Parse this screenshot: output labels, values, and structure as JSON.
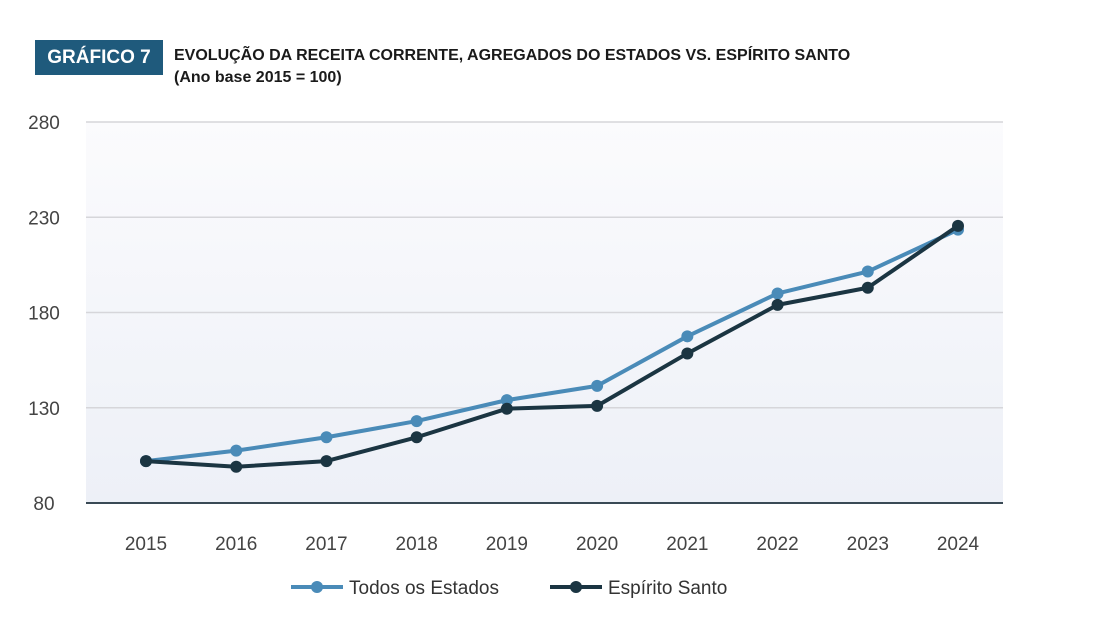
{
  "header": {
    "badge": "GRÁFICO 7",
    "title": "EVOLUÇÃO DA RECEITA CORRENTE, AGREGADOS DO ESTADOS VS. ESPÍRITO SANTO",
    "subtitle": "(Ano base 2015 = 100)"
  },
  "chart_data": {
    "type": "line",
    "title": "EVOLUÇÃO DA RECEITA CORRENTE, AGREGADOS DO ESTADOS VS. ESPÍRITO SANTO",
    "subtitle": "(Ano base 2015 = 100)",
    "xlabel": "",
    "ylabel": "",
    "categories": [
      "2015",
      "2016",
      "2017",
      "2018",
      "2019",
      "2020",
      "2021",
      "2022",
      "2023",
      "2024"
    ],
    "ylim": [
      80,
      280
    ],
    "yticks": [
      80,
      130,
      180,
      230,
      280
    ],
    "grid": true,
    "legend_position": "bottom",
    "series": [
      {
        "name": "Todos os Estados",
        "color": "#4a8bb8",
        "values": [
          102,
          107.5,
          114.5,
          123,
          134,
          141.5,
          167.5,
          190,
          201.5,
          223.5
        ]
      },
      {
        "name": "Espírito Santo",
        "color": "#1b3542",
        "values": [
          102,
          99,
          102,
          114.5,
          129.5,
          131,
          158.5,
          184,
          193,
          225.5
        ]
      }
    ]
  }
}
